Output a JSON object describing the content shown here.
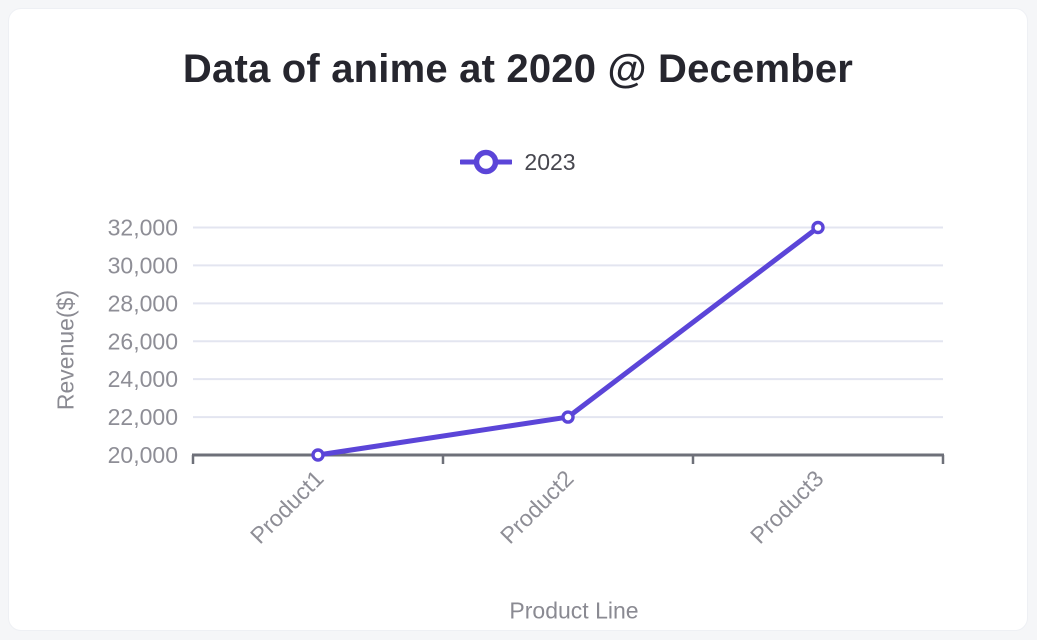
{
  "page": {
    "background_color": "#f5f6f8",
    "card_background_color": "#ffffff"
  },
  "chart_data": {
    "type": "line",
    "title": "Data of anime at 2020 @ December",
    "xlabel": "Product Line",
    "ylabel": "Revenue($)",
    "categories": [
      "Product1",
      "Product2",
      "Product3"
    ],
    "series": [
      {
        "name": "2023",
        "values": [
          20000,
          22000,
          32000
        ],
        "color": "#5b45d8"
      }
    ],
    "ylim": [
      20000,
      32000
    ],
    "ytick_step": 2000,
    "ytick_labels": [
      "20,000",
      "22,000",
      "24,000",
      "26,000",
      "28,000",
      "30,000",
      "32,000"
    ],
    "grid": true,
    "legend_position": "top-center",
    "x_label_rotation": 45,
    "marker": "hollow-circle",
    "colors": {
      "series_line": "#5b45d8",
      "marker_fill": "#ffffff",
      "gridline": "#e3e5f0",
      "axis_line": "#6e7079",
      "tick_label": "#8e8e96",
      "axis_title": "#8a8a92",
      "title_text": "#26262e",
      "legend_text": "#47474f"
    }
  }
}
